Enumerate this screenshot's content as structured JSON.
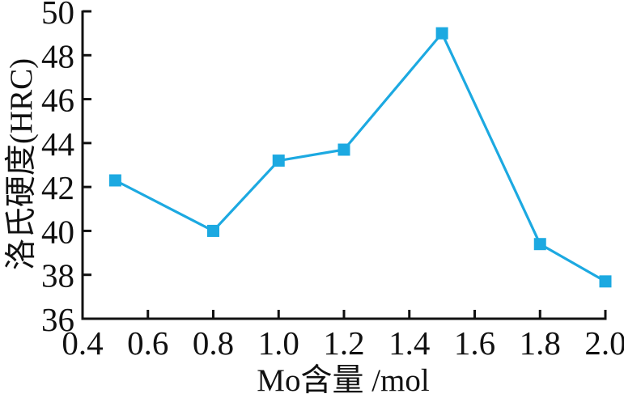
{
  "chart_data": {
    "type": "line",
    "title": "",
    "xlabel": "Mo含量 /mol",
    "ylabel": "洛氏硬度(HRC)",
    "x": [
      0.5,
      0.8,
      1.0,
      1.2,
      1.5,
      1.8,
      2.0
    ],
    "values": [
      42.3,
      40.0,
      43.2,
      43.7,
      49.0,
      39.4,
      37.7
    ],
    "xlim": [
      0.4,
      2.0
    ],
    "ylim": [
      36,
      50
    ],
    "x_ticks": [
      "0.4",
      "0.6",
      "0.8",
      "1.0",
      "1.2",
      "1.4",
      "1.6",
      "1.8",
      "2.0"
    ],
    "y_ticks": [
      "36",
      "38",
      "40",
      "42",
      "44",
      "46",
      "48",
      "50"
    ],
    "grid": false,
    "legend": "none",
    "marker": "square",
    "line_color": "#1CA9E1",
    "axis_color": "#111111"
  }
}
